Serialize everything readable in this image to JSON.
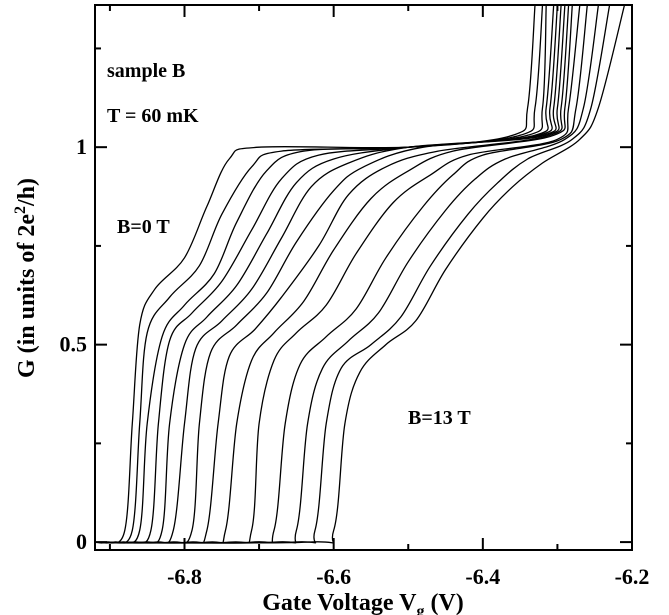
{
  "chart_data": {
    "type": "line",
    "xlabel": "Gate Voltage V",
    "xlabel_sub": "g",
    "xlabel_unit": " (V)",
    "ylabel_prefix": "G (in units of 2e",
    "ylabel_sup": "2",
    "ylabel_suffix": "/h)",
    "xlim": [
      -6.92,
      -6.2
    ],
    "ylim": [
      -0.02,
      1.36
    ],
    "x_ticks": [
      {
        "value": -6.8,
        "label": "-6.8"
      },
      {
        "value": -6.6,
        "label": "-6.6"
      },
      {
        "value": -6.4,
        "label": "-6.4"
      },
      {
        "value": -6.2,
        "label": "-6.2"
      }
    ],
    "y_ticks": [
      {
        "value": 0,
        "label": "0"
      },
      {
        "value": 0.5,
        "label": "0.5"
      },
      {
        "value": 1,
        "label": "1"
      }
    ],
    "x_minor_ticks": [
      -6.9,
      -6.7,
      -6.5,
      -6.3
    ],
    "y_minor_ticks": [
      0.25,
      0.75,
      1.25
    ],
    "annotations": {
      "sample": "sample B",
      "temperature": "T = 60 mK",
      "b_low": "B=0 T",
      "b_high": "B=13 T"
    },
    "field_range_T": [
      0,
      13
    ],
    "n_traces": 14,
    "series": [
      {
        "points": [
          [
            -6.905,
            0.0
          ],
          [
            -6.88,
            0.03
          ],
          [
            -6.87,
            0.3
          ],
          [
            -6.86,
            0.55
          ],
          [
            -6.84,
            0.64
          ],
          [
            -6.8,
            0.72
          ],
          [
            -6.77,
            0.85
          ],
          [
            -6.74,
            0.97
          ],
          [
            -6.7,
            1.0
          ],
          [
            -6.5,
            1.0
          ],
          [
            -6.36,
            1.03
          ],
          [
            -6.34,
            1.1
          ],
          [
            -6.33,
            1.36
          ]
        ]
      },
      {
        "points": [
          [
            -6.895,
            0.0
          ],
          [
            -6.87,
            0.03
          ],
          [
            -6.86,
            0.3
          ],
          [
            -6.85,
            0.53
          ],
          [
            -6.82,
            0.62
          ],
          [
            -6.78,
            0.7
          ],
          [
            -6.75,
            0.83
          ],
          [
            -6.71,
            0.95
          ],
          [
            -6.67,
            0.99
          ],
          [
            -6.5,
            1.0
          ],
          [
            -6.35,
            1.03
          ],
          [
            -6.33,
            1.1
          ],
          [
            -6.32,
            1.36
          ]
        ]
      },
      {
        "points": [
          [
            -6.885,
            0.0
          ],
          [
            -6.86,
            0.03
          ],
          [
            -6.85,
            0.3
          ],
          [
            -6.83,
            0.52
          ],
          [
            -6.8,
            0.6
          ],
          [
            -6.76,
            0.68
          ],
          [
            -6.73,
            0.81
          ],
          [
            -6.69,
            0.94
          ],
          [
            -6.64,
            0.99
          ],
          [
            -6.5,
            1.0
          ],
          [
            -6.34,
            1.03
          ],
          [
            -6.32,
            1.1
          ],
          [
            -6.315,
            1.36
          ]
        ]
      },
      {
        "points": [
          [
            -6.87,
            0.0
          ],
          [
            -6.845,
            0.03
          ],
          [
            -6.835,
            0.3
          ],
          [
            -6.82,
            0.51
          ],
          [
            -6.79,
            0.58
          ],
          [
            -6.75,
            0.66
          ],
          [
            -6.71,
            0.79
          ],
          [
            -6.67,
            0.92
          ],
          [
            -6.62,
            0.98
          ],
          [
            -6.5,
            1.0
          ],
          [
            -6.33,
            1.03
          ],
          [
            -6.315,
            1.1
          ],
          [
            -6.305,
            1.36
          ]
        ]
      },
      {
        "points": [
          [
            -6.855,
            0.0
          ],
          [
            -6.83,
            0.03
          ],
          [
            -6.82,
            0.3
          ],
          [
            -6.8,
            0.5
          ],
          [
            -6.77,
            0.57
          ],
          [
            -6.73,
            0.65
          ],
          [
            -6.69,
            0.78
          ],
          [
            -6.65,
            0.91
          ],
          [
            -6.6,
            0.97
          ],
          [
            -6.5,
            1.0
          ],
          [
            -6.325,
            1.03
          ],
          [
            -6.31,
            1.1
          ],
          [
            -6.3,
            1.36
          ]
        ]
      },
      {
        "points": [
          [
            -6.84,
            0.0
          ],
          [
            -6.815,
            0.03
          ],
          [
            -6.8,
            0.3
          ],
          [
            -6.785,
            0.49
          ],
          [
            -6.75,
            0.56
          ],
          [
            -6.71,
            0.64
          ],
          [
            -6.67,
            0.77
          ],
          [
            -6.63,
            0.9
          ],
          [
            -6.58,
            0.96
          ],
          [
            -6.5,
            1.0
          ],
          [
            -6.32,
            1.03
          ],
          [
            -6.305,
            1.1
          ],
          [
            -6.295,
            1.36
          ]
        ]
      },
      {
        "points": [
          [
            -6.82,
            0.0
          ],
          [
            -6.79,
            0.03
          ],
          [
            -6.78,
            0.3
          ],
          [
            -6.765,
            0.48
          ],
          [
            -6.73,
            0.55
          ],
          [
            -6.69,
            0.63
          ],
          [
            -6.65,
            0.76
          ],
          [
            -6.6,
            0.89
          ],
          [
            -6.56,
            0.95
          ],
          [
            -6.48,
            1.0
          ],
          [
            -6.315,
            1.03
          ],
          [
            -6.3,
            1.1
          ],
          [
            -6.29,
            1.36
          ]
        ]
      },
      {
        "points": [
          [
            -6.795,
            0.0
          ],
          [
            -6.77,
            0.03
          ],
          [
            -6.755,
            0.3
          ],
          [
            -6.74,
            0.47
          ],
          [
            -6.705,
            0.54
          ],
          [
            -6.67,
            0.62
          ],
          [
            -6.62,
            0.75
          ],
          [
            -6.58,
            0.88
          ],
          [
            -6.53,
            0.95
          ],
          [
            -6.46,
            0.99
          ],
          [
            -6.31,
            1.03
          ],
          [
            -6.295,
            1.1
          ],
          [
            -6.285,
            1.36
          ]
        ]
      },
      {
        "points": [
          [
            -6.77,
            0.0
          ],
          [
            -6.745,
            0.03
          ],
          [
            -6.73,
            0.3
          ],
          [
            -6.71,
            0.46
          ],
          [
            -6.68,
            0.53
          ],
          [
            -6.64,
            0.61
          ],
          [
            -6.6,
            0.74
          ],
          [
            -6.55,
            0.87
          ],
          [
            -6.5,
            0.94
          ],
          [
            -6.44,
            0.99
          ],
          [
            -6.305,
            1.03
          ],
          [
            -6.29,
            1.1
          ],
          [
            -6.28,
            1.36
          ]
        ]
      },
      {
        "points": [
          [
            -6.74,
            0.0
          ],
          [
            -6.71,
            0.03
          ],
          [
            -6.7,
            0.3
          ],
          [
            -6.68,
            0.46
          ],
          [
            -6.65,
            0.53
          ],
          [
            -6.61,
            0.6
          ],
          [
            -6.57,
            0.73
          ],
          [
            -6.52,
            0.86
          ],
          [
            -6.47,
            0.93
          ],
          [
            -6.42,
            0.98
          ],
          [
            -6.3,
            1.02
          ],
          [
            -6.285,
            1.1
          ],
          [
            -6.27,
            1.36
          ]
        ]
      },
      {
        "points": [
          [
            -6.71,
            0.0
          ],
          [
            -6.68,
            0.03
          ],
          [
            -6.665,
            0.3
          ],
          [
            -6.645,
            0.45
          ],
          [
            -6.61,
            0.52
          ],
          [
            -6.57,
            0.59
          ],
          [
            -6.53,
            0.72
          ],
          [
            -6.48,
            0.85
          ],
          [
            -6.44,
            0.93
          ],
          [
            -6.4,
            0.98
          ],
          [
            -6.295,
            1.02
          ],
          [
            -6.275,
            1.1
          ],
          [
            -6.26,
            1.36
          ]
        ]
      },
      {
        "points": [
          [
            -6.68,
            0.0
          ],
          [
            -6.65,
            0.03
          ],
          [
            -6.635,
            0.3
          ],
          [
            -6.615,
            0.44
          ],
          [
            -6.58,
            0.51
          ],
          [
            -6.54,
            0.58
          ],
          [
            -6.5,
            0.71
          ],
          [
            -6.45,
            0.84
          ],
          [
            -6.41,
            0.92
          ],
          [
            -6.37,
            0.97
          ],
          [
            -6.29,
            1.02
          ],
          [
            -6.265,
            1.1
          ],
          [
            -6.245,
            1.36
          ]
        ]
      },
      {
        "points": [
          [
            -6.655,
            0.0
          ],
          [
            -6.625,
            0.03
          ],
          [
            -6.61,
            0.3
          ],
          [
            -6.59,
            0.44
          ],
          [
            -6.55,
            0.5
          ],
          [
            -6.51,
            0.57
          ],
          [
            -6.47,
            0.7
          ],
          [
            -6.42,
            0.83
          ],
          [
            -6.38,
            0.91
          ],
          [
            -6.34,
            0.97
          ],
          [
            -6.28,
            1.02
          ],
          [
            -6.255,
            1.1
          ],
          [
            -6.23,
            1.36
          ]
        ]
      },
      {
        "points": [
          [
            -6.635,
            0.0
          ],
          [
            -6.6,
            0.03
          ],
          [
            -6.585,
            0.3
          ],
          [
            -6.565,
            0.43
          ],
          [
            -6.53,
            0.5
          ],
          [
            -6.49,
            0.56
          ],
          [
            -6.45,
            0.69
          ],
          [
            -6.4,
            0.82
          ],
          [
            -6.36,
            0.9
          ],
          [
            -6.32,
            0.96
          ],
          [
            -6.27,
            1.02
          ],
          [
            -6.245,
            1.1
          ],
          [
            -6.21,
            1.36
          ]
        ]
      }
    ]
  }
}
